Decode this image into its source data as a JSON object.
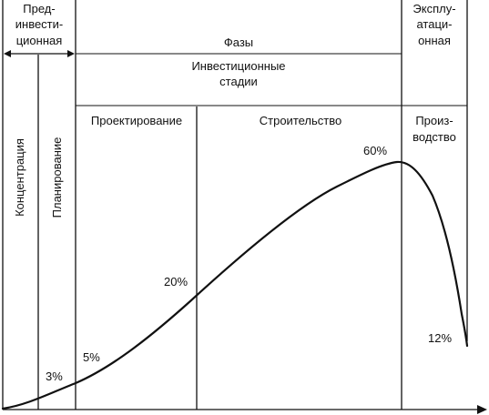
{
  "phases": {
    "pre_investment": [
      "Пред-",
      "инвести-",
      "ционная"
    ],
    "phases_label": "Фазы",
    "investment_stages": [
      "Инвестиционные",
      "стадии"
    ],
    "operation": [
      "Эксплу-",
      "атаци-",
      "онная"
    ]
  },
  "stages": {
    "concentration": "Концентрация",
    "planning": "Планирование",
    "design": "Проектирование",
    "construction": "Строительство",
    "production": [
      "Произ-",
      "водство"
    ]
  },
  "curve_labels": {
    "p3": "3%",
    "p5": "5%",
    "p20": "20%",
    "p60": "60%",
    "p12": "12%"
  }
}
